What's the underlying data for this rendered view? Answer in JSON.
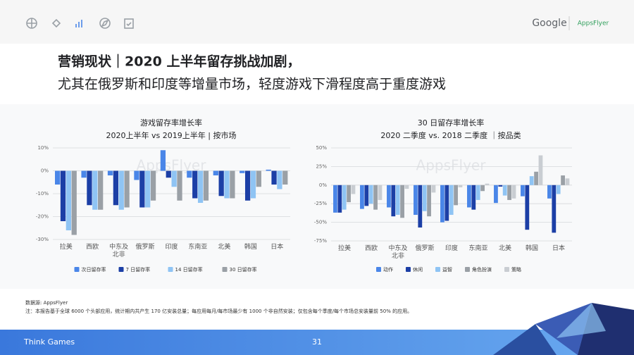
{
  "header": {
    "logo_google": "Google",
    "logo_appsflyer": "AppsFlyer",
    "title_line1": "营销现状｜2020 上半年留存挑战加剧，",
    "title_line2": "尤其在俄罗斯和印度等增量市场，轻度游戏下滑程度高于重度游戏"
  },
  "chart_data": [
    {
      "type": "bar",
      "title": "游戏留存率增长率",
      "subtitle": "2020上半年 vs 2019上半年 | 按市场",
      "watermark": "AppsFlyer",
      "categories": [
        "拉美",
        "西欧",
        "中东及北非",
        "俄罗斯",
        "印度",
        "东南亚",
        "北美",
        "韩国",
        "日本"
      ],
      "series": [
        {
          "name": "次日留存率",
          "color": "#4a86e8",
          "values": [
            -6,
            -3,
            -2,
            -4,
            9,
            -3,
            -2,
            -1,
            0.5
          ]
        },
        {
          "name": "7 日留存率",
          "color": "#1c3fa6",
          "values": [
            -22,
            -15,
            -15,
            -16,
            -3,
            -12,
            -11,
            -13,
            -6
          ]
        },
        {
          "name": "14 日留存率",
          "color": "#8fc4f4",
          "values": [
            -26,
            -17,
            -17,
            -16,
            -7,
            -14,
            -12,
            -12,
            -8
          ]
        },
        {
          "name": "30 日留存率",
          "color": "#9aa0a6",
          "values": [
            -28,
            -17,
            -16,
            -13,
            -13,
            -13,
            -12,
            -7,
            -6
          ]
        }
      ],
      "ylim": [
        -30,
        10
      ],
      "yticks": [
        {
          "value": 10,
          "label": "10%"
        },
        {
          "value": 0,
          "label": "0%"
        },
        {
          "value": -10,
          "label": "-10%"
        },
        {
          "value": -20,
          "label": "-20%"
        },
        {
          "value": -30,
          "label": "-30%"
        }
      ],
      "grid": true,
      "legend": "bottom"
    },
    {
      "type": "bar",
      "title": "30 日留存率增长率",
      "subtitle": "2020 二季度 vs. 2018 二季度 ｜按品类",
      "watermark": "AppsFlyer",
      "categories": [
        "拉美",
        "西欧",
        "中东及北非",
        "俄罗斯",
        "印度",
        "东南亚",
        "北美",
        "韩国",
        "日本"
      ],
      "series": [
        {
          "name": "动作",
          "color": "#4a86e8",
          "values": [
            -37,
            -32,
            -30,
            -40,
            -50,
            -30,
            -24,
            -15,
            -18
          ]
        },
        {
          "name": "休闲",
          "color": "#1c3fa6",
          "values": [
            -37,
            -28,
            -42,
            -57,
            -48,
            -33,
            -2,
            -60,
            -64
          ]
        },
        {
          "name": "益智",
          "color": "#8fc4f4",
          "values": [
            -33,
            -25,
            -40,
            -35,
            -40,
            -20,
            -14,
            12,
            -12
          ]
        },
        {
          "name": "角色扮演",
          "color": "#9aa0a6",
          "values": [
            -23,
            -33,
            -44,
            -42,
            -27,
            -8,
            -20,
            18,
            13
          ]
        },
        {
          "name": "策略",
          "color": "#c9cdd2",
          "values": [
            -12,
            -20,
            -5,
            -10,
            -3,
            2,
            -18,
            40,
            9
          ]
        }
      ],
      "ylim": [
        -75,
        50
      ],
      "yticks": [
        {
          "value": 50,
          "label": "50%"
        },
        {
          "value": 25,
          "label": "25%"
        },
        {
          "value": 0,
          "label": "0%"
        },
        {
          "value": -25,
          "label": "-25%"
        },
        {
          "value": -50,
          "label": "-50%"
        },
        {
          "value": -75,
          "label": "-75%"
        }
      ],
      "grid": true,
      "legend": "bottom"
    }
  ],
  "notes": {
    "source": "数据源: AppsFlyer",
    "note": "注：本报告基于全球 6000 个头部应用，统计期内共产生 170 亿安装总量；每应用每月/每市场最少有 1000 个非自然安装；仅包含每个季度/每个市场总安装量前 50% 的应用。"
  },
  "footer": {
    "brand": "Think Games",
    "page": "31"
  }
}
